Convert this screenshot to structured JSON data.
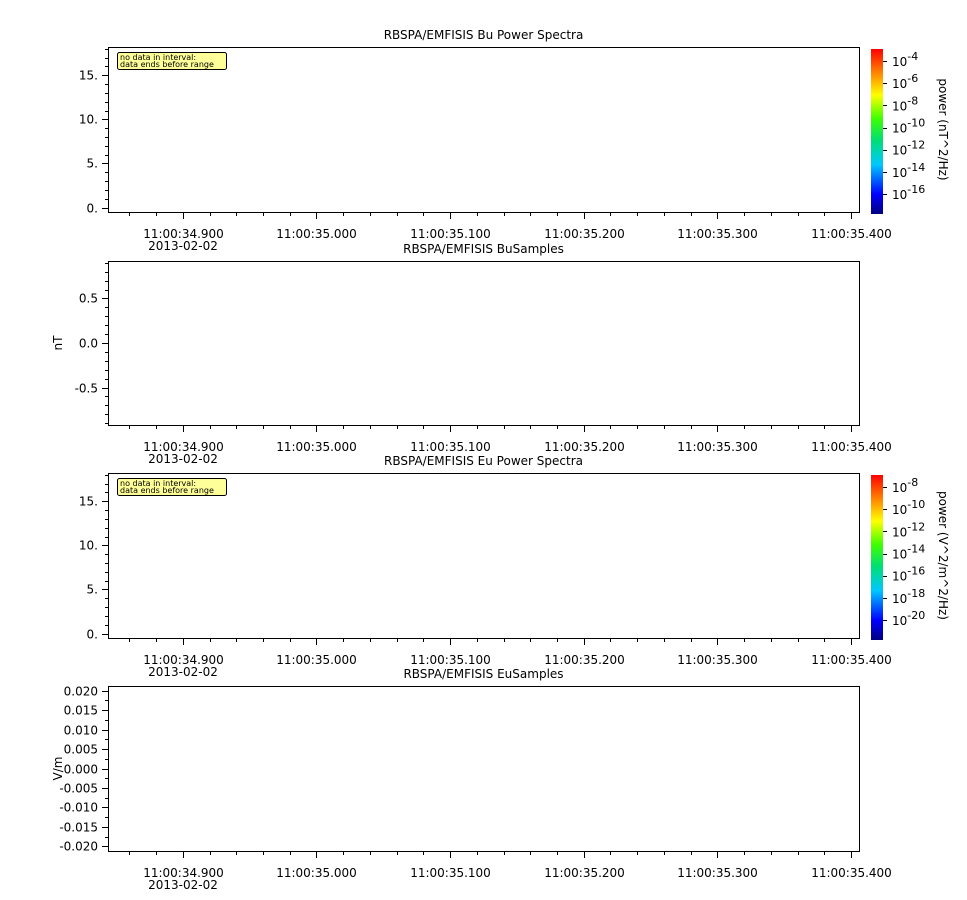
{
  "colors": {
    "note_bg": "#ffff99",
    "frame": "#000000"
  },
  "chart_data": [
    {
      "type": "heatmap",
      "title": "RBSPA/EMFISIS  Bu Power Spectra",
      "ylabel": "",
      "yticks": [
        "0.",
        "5.",
        "10.",
        "15."
      ],
      "ylim": [
        -0.5,
        18.2
      ],
      "xticks": [
        "11:00:34.900",
        "11:00:35.000",
        "11:00:35.100",
        "11:00:35.200",
        "11:00:35.300",
        "11:00:35.400"
      ],
      "date_label": "2013-02-02",
      "note": [
        "no data in interval:",
        "data ends before range"
      ],
      "colorbar": {
        "label": "power (nT^2/Hz)",
        "log_scale": true,
        "exponents": [
          "-4",
          "-6",
          "-8",
          "-10",
          "-12",
          "-14",
          "-16"
        ]
      }
    },
    {
      "type": "line",
      "title": "RBSPA/EMFISIS  BuSamples",
      "ylabel": "nT",
      "yticks": [
        "0.5",
        "0.0",
        "-0.5"
      ],
      "ylim": [
        -0.92,
        0.92
      ],
      "xticks": [
        "11:00:34.900",
        "11:00:35.000",
        "11:00:35.100",
        "11:00:35.200",
        "11:00:35.300",
        "11:00:35.400"
      ],
      "date_label": "2013-02-02"
    },
    {
      "type": "heatmap",
      "title": "RBSPA/EMFISIS  Eu Power Spectra",
      "ylabel": "",
      "yticks": [
        "0.",
        "5.",
        "10.",
        "15."
      ],
      "ylim": [
        -0.5,
        18.2
      ],
      "xticks": [
        "11:00:34.900",
        "11:00:35.000",
        "11:00:35.100",
        "11:00:35.200",
        "11:00:35.300",
        "11:00:35.400"
      ],
      "date_label": "2013-02-02",
      "note": [
        "no data in interval:",
        "data ends before range"
      ],
      "colorbar": {
        "label": "power (V^2/m^2/Hz)",
        "log_scale": true,
        "exponents": [
          "-8",
          "-10",
          "-12",
          "-14",
          "-16",
          "-18",
          "-20"
        ]
      }
    },
    {
      "type": "line",
      "title": "RBSPA/EMFISIS  EuSamples",
      "ylabel": "V/m",
      "yticks": [
        "0.020",
        "0.015",
        "0.010",
        "0.005",
        "0.000",
        "-0.005",
        "-0.010",
        "-0.015",
        "-0.020"
      ],
      "ylim": [
        -0.0212,
        0.0212
      ],
      "xticks": [
        "11:00:34.900",
        "11:00:35.000",
        "11:00:35.100",
        "11:00:35.200",
        "11:00:35.300",
        "11:00:35.400"
      ],
      "date_label": "2013-02-02"
    }
  ]
}
